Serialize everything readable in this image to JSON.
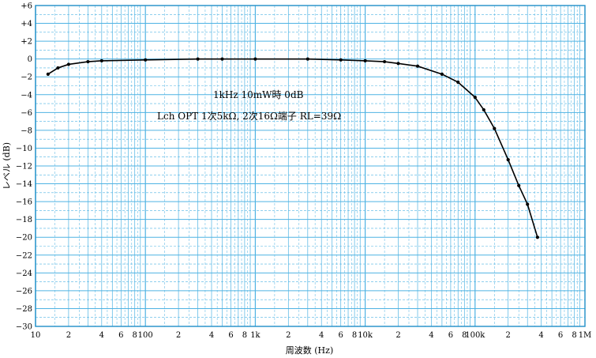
{
  "chart_data": {
    "type": "line",
    "x_scale": "log",
    "xlim": [
      10,
      1000000
    ],
    "ylim": [
      -30,
      6
    ],
    "grid": true,
    "xlabel": "周波数 (Hz)",
    "ylabel": "レベル (dB)",
    "annotations": [
      "1kHz  10mW時 0dB",
      "Lch  OPT 1次5kΩ, 2次16Ω端子 RL=39Ω"
    ],
    "x_tick_labels": [
      {
        "x": 10,
        "label": "10"
      },
      {
        "x": 20,
        "label": "2"
      },
      {
        "x": 40,
        "label": "4"
      },
      {
        "x": 60,
        "label": "6"
      },
      {
        "x": 80,
        "label": "8"
      },
      {
        "x": 100,
        "label": "100"
      },
      {
        "x": 200,
        "label": "2"
      },
      {
        "x": 400,
        "label": "4"
      },
      {
        "x": 600,
        "label": "6"
      },
      {
        "x": 800,
        "label": "8"
      },
      {
        "x": 1000,
        "label": "1k"
      },
      {
        "x": 2000,
        "label": "2"
      },
      {
        "x": 4000,
        "label": "4"
      },
      {
        "x": 6000,
        "label": "6"
      },
      {
        "x": 8000,
        "label": "8"
      },
      {
        "x": 10000,
        "label": "10k"
      },
      {
        "x": 20000,
        "label": "2"
      },
      {
        "x": 40000,
        "label": "4"
      },
      {
        "x": 60000,
        "label": "6"
      },
      {
        "x": 80000,
        "label": "8"
      },
      {
        "x": 100000,
        "label": "100k"
      },
      {
        "x": 200000,
        "label": "2"
      },
      {
        "x": 400000,
        "label": "4"
      },
      {
        "x": 600000,
        "label": "6"
      },
      {
        "x": 800000,
        "label": "8"
      },
      {
        "x": 1000000,
        "label": "1M"
      }
    ],
    "y_tick_labels": [
      {
        "y": 6,
        "label": "+6"
      },
      {
        "y": 4,
        "label": "+4"
      },
      {
        "y": 2,
        "label": "+2"
      },
      {
        "y": 0,
        "label": "0"
      },
      {
        "y": -2,
        "label": "−2"
      },
      {
        "y": -4,
        "label": "−4"
      },
      {
        "y": -6,
        "label": "−6"
      },
      {
        "y": -8,
        "label": "−8"
      },
      {
        "y": -10,
        "label": "−10"
      },
      {
        "y": -12,
        "label": "−12"
      },
      {
        "y": -14,
        "label": "−14"
      },
      {
        "y": -16,
        "label": "−16"
      },
      {
        "y": -18,
        "label": "−18"
      },
      {
        "y": -20,
        "label": "−20"
      },
      {
        "y": -22,
        "label": "−22"
      },
      {
        "y": -24,
        "label": "−24"
      },
      {
        "y": -26,
        "label": "−26"
      },
      {
        "y": -28,
        "label": "−28"
      },
      {
        "y": -30,
        "label": "−30"
      }
    ],
    "series": [
      {
        "color": "#000000",
        "points": [
          {
            "x": 13,
            "y": -1.7
          },
          {
            "x": 16,
            "y": -1.0
          },
          {
            "x": 20,
            "y": -0.6
          },
          {
            "x": 30,
            "y": -0.3
          },
          {
            "x": 40,
            "y": -0.2
          },
          {
            "x": 100,
            "y": -0.1
          },
          {
            "x": 300,
            "y": 0.0
          },
          {
            "x": 500,
            "y": 0.0
          },
          {
            "x": 1000,
            "y": 0.0
          },
          {
            "x": 3000,
            "y": 0.0
          },
          {
            "x": 6000,
            "y": -0.1
          },
          {
            "x": 10000,
            "y": -0.2
          },
          {
            "x": 15000,
            "y": -0.3
          },
          {
            "x": 20000,
            "y": -0.5
          },
          {
            "x": 30000,
            "y": -0.8
          },
          {
            "x": 50000,
            "y": -1.7
          },
          {
            "x": 70000,
            "y": -2.6
          },
          {
            "x": 100000,
            "y": -4.3
          },
          {
            "x": 120000,
            "y": -5.7
          },
          {
            "x": 150000,
            "y": -7.8
          },
          {
            "x": 200000,
            "y": -11.3
          },
          {
            "x": 250000,
            "y": -14.2
          },
          {
            "x": 300000,
            "y": -16.3
          },
          {
            "x": 370000,
            "y": -20.0
          }
        ]
      }
    ],
    "colors": {
      "grid": "#4fb3e3",
      "border": "#1f8fc8",
      "line": "#000000"
    }
  }
}
